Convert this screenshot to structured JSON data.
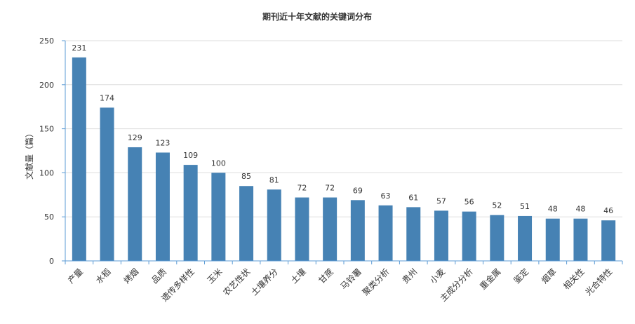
{
  "chart_data": {
    "type": "bar",
    "title": "期刊近十年文献的关键词分布",
    "xlabel": "",
    "ylabel": "文献量（篇）",
    "ylim": [
      0,
      250
    ],
    "yticks": [
      0,
      50,
      100,
      150,
      200,
      250
    ],
    "grid": true,
    "legend": "none",
    "bar_color": "#4682b4",
    "categories": [
      "产量",
      "水稻",
      "烤烟",
      "品质",
      "遗传多样性",
      "玉米",
      "农艺性状",
      "土壤养分",
      "土壤",
      "甘蔗",
      "马铃薯",
      "聚类分析",
      "贵州",
      "小麦",
      "主成分分析",
      "重金属",
      "鉴定",
      "烟草",
      "相关性",
      "光合特性"
    ],
    "values": [
      231,
      174,
      129,
      123,
      109,
      100,
      85,
      81,
      72,
      72,
      69,
      63,
      61,
      57,
      56,
      52,
      51,
      48,
      48,
      46
    ]
  }
}
